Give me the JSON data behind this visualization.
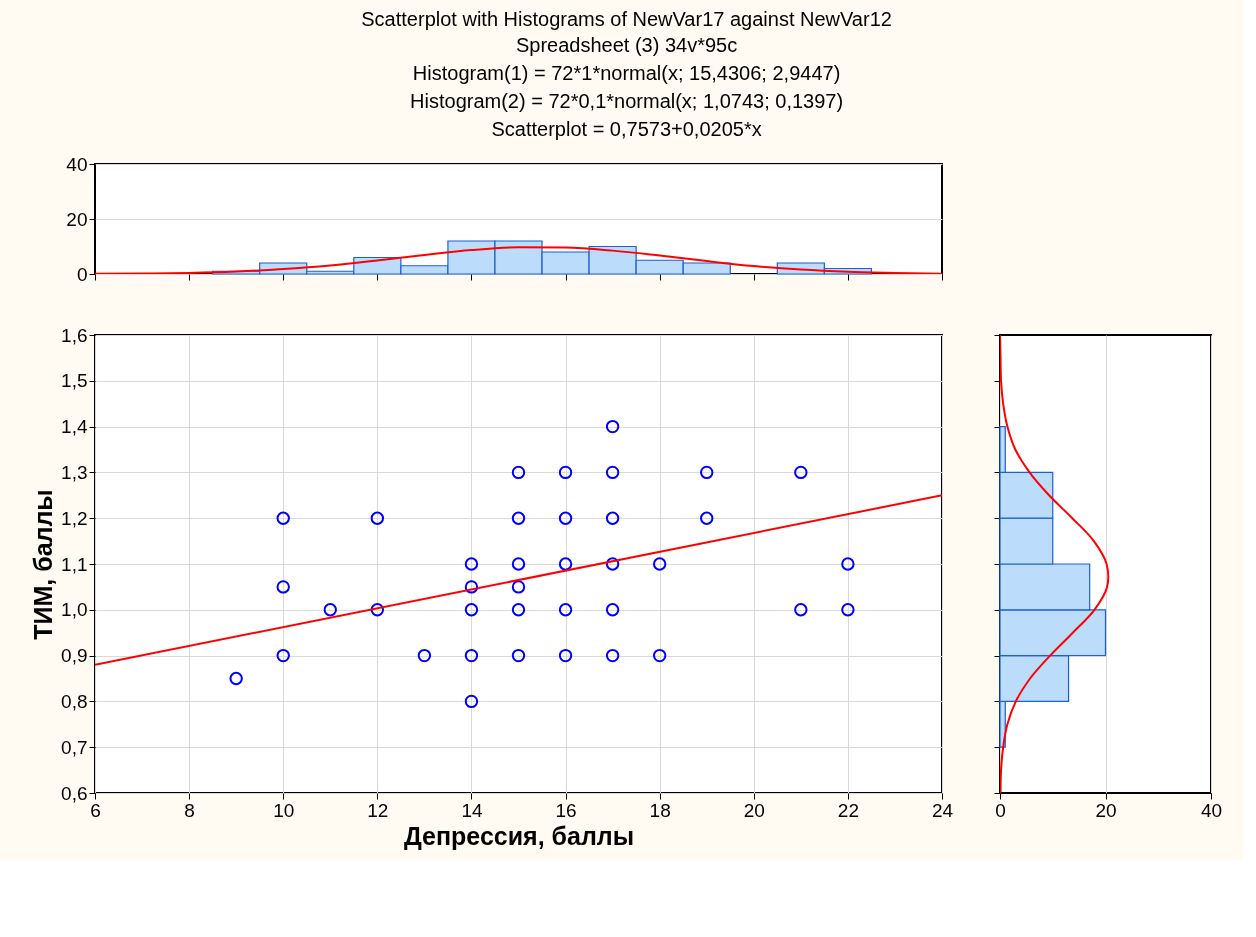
{
  "chart_data": [
    {
      "type": "histogram",
      "title": "Scatterplot with Histograms of NewVar17 against NewVar12",
      "subtitle": "Spreadsheet (3) 34v*95c\nHistogram(1) = 72*1*normal(x; 15,4306; 2,9447)\nHistogram(2) = 72*0,1*normal(x; 1,0743; 0,1397)\nScatterplot = 0,7573+0,0205*x",
      "bins": [
        8.5,
        9.5,
        10.5,
        11.5,
        12.5,
        13.5,
        14.5,
        15.5,
        16.5,
        17.5,
        18.5,
        19.5,
        20.5,
        21.5,
        22.5
      ],
      "values": [
        1,
        4,
        1,
        6,
        3,
        12,
        12,
        8,
        10,
        5,
        4,
        0,
        4,
        2
      ],
      "color": "#bcdcfb",
      "xlim": [
        6,
        24
      ],
      "xticks": [
        6,
        8,
        10,
        12,
        14,
        16,
        18,
        20,
        22,
        24
      ],
      "ylim": [
        0,
        40
      ],
      "yticks": [
        0,
        20,
        40
      ],
      "tick_labels": "y",
      "grid": "y",
      "series": [
        {
          "type": "line",
          "color": "#ff0000",
          "x": [
            6,
            7,
            8,
            9,
            10,
            11,
            12,
            13,
            14,
            15,
            16,
            17,
            18,
            19,
            20,
            21,
            22,
            23,
            24
          ],
          "values": [
            0.1,
            0.2,
            0.4,
            0.9,
            1.8,
            3.1,
            4.9,
            6.9,
            8.7,
            9.7,
            9.6,
            8.5,
            6.7,
            4.7,
            2.9,
            1.6,
            0.8,
            0.4,
            0.1
          ]
        }
      ]
    },
    {
      "type": "scatter",
      "xlabel": "Депрессия, баллы",
      "ylabel": "ТИМ, баллы",
      "xlim": [
        6,
        24
      ],
      "xticks": [
        6,
        8,
        10,
        12,
        14,
        16,
        18,
        20,
        22,
        24
      ],
      "ylim": [
        0.6,
        1.6
      ],
      "yticks": [
        {
          "value": 0.6,
          "label": "0,6"
        },
        {
          "value": 0.7,
          "label": "0,7"
        },
        {
          "value": 0.8,
          "label": "0,8"
        },
        {
          "value": 0.9,
          "label": "0,9"
        },
        {
          "value": 1.0,
          "label": "1,0"
        },
        {
          "value": 1.1,
          "label": "1,1"
        },
        {
          "value": 1.2,
          "label": "1,2"
        },
        {
          "value": 1.3,
          "label": "1,3"
        },
        {
          "value": 1.4,
          "label": "1,4"
        },
        {
          "value": 1.5,
          "label": "1,5"
        },
        {
          "value": 1.6,
          "label": "1,6"
        }
      ],
      "grid": true,
      "series": [
        {
          "type": "scatter",
          "color": "#0000ff",
          "marker": "circle",
          "x": [
            9,
            10,
            10,
            10,
            11,
            12,
            12,
            13,
            14,
            14,
            14,
            14,
            14,
            15,
            15,
            15,
            15,
            15,
            15,
            16,
            16,
            16,
            16,
            16,
            17,
            17,
            17,
            17,
            17,
            17,
            18,
            18,
            19,
            19,
            21,
            21,
            22,
            22
          ],
          "values": [
            0.85,
            1.2,
            1.05,
            0.9,
            1.0,
            1.2,
            1.0,
            0.9,
            1.1,
            1.05,
            1.0,
            0.9,
            0.8,
            1.3,
            1.2,
            1.1,
            1.05,
            1.0,
            0.9,
            1.3,
            1.2,
            1.1,
            1.0,
            0.9,
            1.4,
            1.3,
            1.2,
            1.1,
            1.0,
            0.9,
            1.1,
            0.9,
            1.3,
            1.2,
            1.3,
            1.0,
            1.1,
            1.0
          ]
        },
        {
          "type": "line",
          "color": "#ff0000",
          "x": [
            6,
            24
          ],
          "values": [
            0.88,
            1.25
          ]
        }
      ]
    },
    {
      "type": "histogram",
      "orientation": "horizontal",
      "bins": [
        0.7,
        0.8,
        0.9,
        1.0,
        1.1,
        1.2,
        1.3,
        1.4
      ],
      "values": [
        1,
        13,
        20,
        17,
        10,
        10,
        1
      ],
      "color": "#bcdcfb",
      "xlim": [
        0,
        40
      ],
      "xticks": [
        0,
        20,
        40
      ],
      "ylim": [
        0.6,
        1.6
      ],
      "yticks": [
        0.6,
        0.7,
        0.8,
        0.9,
        1.0,
        1.1,
        1.2,
        1.3,
        1.4,
        1.5,
        1.6
      ],
      "tick_labels": "x",
      "grid": "x",
      "series": [
        {
          "type": "line",
          "color": "#ff0000",
          "x": [
            0.6,
            0.65,
            0.7,
            0.75,
            0.8,
            0.85,
            0.9,
            0.95,
            1.0,
            1.05,
            1.1,
            1.15,
            1.2,
            1.25,
            1.3,
            1.35,
            1.4,
            1.45,
            1.5,
            1.55,
            1.6
          ],
          "values": [
            0.1,
            0.2,
            0.6,
            1.4,
            3.0,
            5.7,
            9.5,
            13.8,
            17.9,
            20.3,
            20.2,
            17.8,
            13.7,
            9.3,
            5.6,
            2.9,
            1.4,
            0.6,
            0.2,
            0.1,
            0.0
          ]
        }
      ]
    }
  ]
}
